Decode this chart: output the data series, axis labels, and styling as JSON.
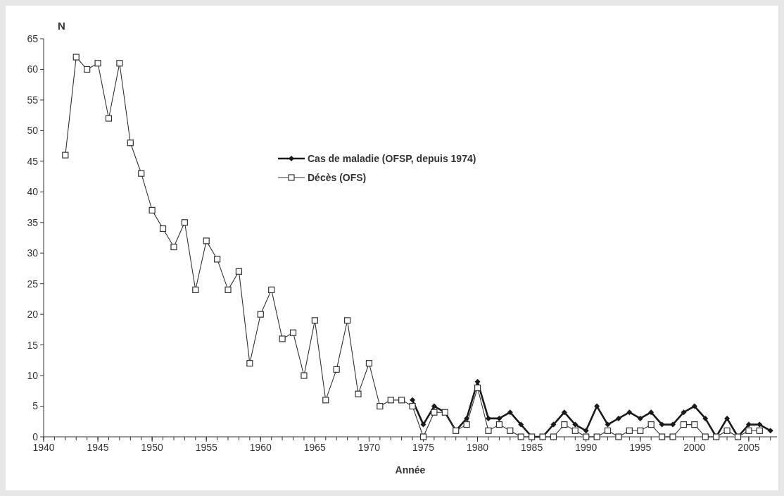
{
  "chart_data": {
    "type": "line",
    "xlabel": "Année",
    "ylabel": "N",
    "xlim": [
      1940,
      2007.6
    ],
    "xticks": [
      1940,
      1945,
      1950,
      1955,
      1960,
      1965,
      1970,
      1975,
      1980,
      1985,
      1990,
      1995,
      2000,
      2005
    ],
    "ylim": [
      0,
      65
    ],
    "yticks": [
      0,
      5,
      10,
      15,
      20,
      25,
      30,
      35,
      40,
      45,
      50,
      55,
      60,
      65
    ],
    "grid": false,
    "legend": "top",
    "series": [
      {
        "name": "Cas de maladie (OFSP, depuis 1974)",
        "color": "#1a1a1a",
        "marker": "diamond",
        "x": [
          1974,
          1975,
          1976,
          1977,
          1978,
          1979,
          1980,
          1981,
          1982,
          1983,
          1984,
          1985,
          1986,
          1987,
          1988,
          1989,
          1990,
          1991,
          1992,
          1993,
          1994,
          1995,
          1996,
          1997,
          1998,
          1999,
          2000,
          2001,
          2002,
          2003,
          2004,
          2005,
          2006,
          2007
        ],
        "values": [
          6,
          2,
          5,
          4,
          1,
          3,
          9,
          3,
          3,
          4,
          2,
          0,
          0,
          2,
          4,
          2,
          1,
          5,
          2,
          3,
          4,
          3,
          4,
          2,
          2,
          4,
          5,
          3,
          0,
          3,
          0,
          2,
          2,
          1
        ]
      },
      {
        "name": "Décès (OFS)",
        "color": "#333333",
        "marker": "square",
        "x": [
          1942,
          1943,
          1944,
          1945,
          1946,
          1947,
          1948,
          1949,
          1950,
          1951,
          1952,
          1953,
          1954,
          1955,
          1956,
          1957,
          1958,
          1959,
          1960,
          1961,
          1962,
          1963,
          1964,
          1965,
          1966,
          1967,
          1968,
          1969,
          1970,
          1971,
          1972,
          1973,
          1974,
          1975,
          1976,
          1977,
          1978,
          1979,
          1980,
          1981,
          1982,
          1983,
          1984,
          1985,
          1986,
          1987,
          1988,
          1989,
          1990,
          1991,
          1992,
          1993,
          1994,
          1995,
          1996,
          1997,
          1998,
          1999,
          2000,
          2001,
          2002,
          2003,
          2004,
          2005,
          2006
        ],
        "values": [
          46,
          62,
          60,
          61,
          52,
          61,
          48,
          43,
          37,
          34,
          31,
          35,
          24,
          32,
          29,
          24,
          27,
          12,
          20,
          24,
          16,
          17,
          10,
          19,
          6,
          11,
          19,
          7,
          12,
          5,
          6,
          6,
          5,
          0,
          4,
          4,
          1,
          2,
          8,
          1,
          2,
          1,
          0,
          0,
          0,
          0,
          2,
          1,
          0,
          0,
          1,
          0,
          1,
          1,
          2,
          0,
          0,
          2,
          2,
          0,
          0,
          1,
          0,
          1,
          1
        ]
      }
    ]
  }
}
